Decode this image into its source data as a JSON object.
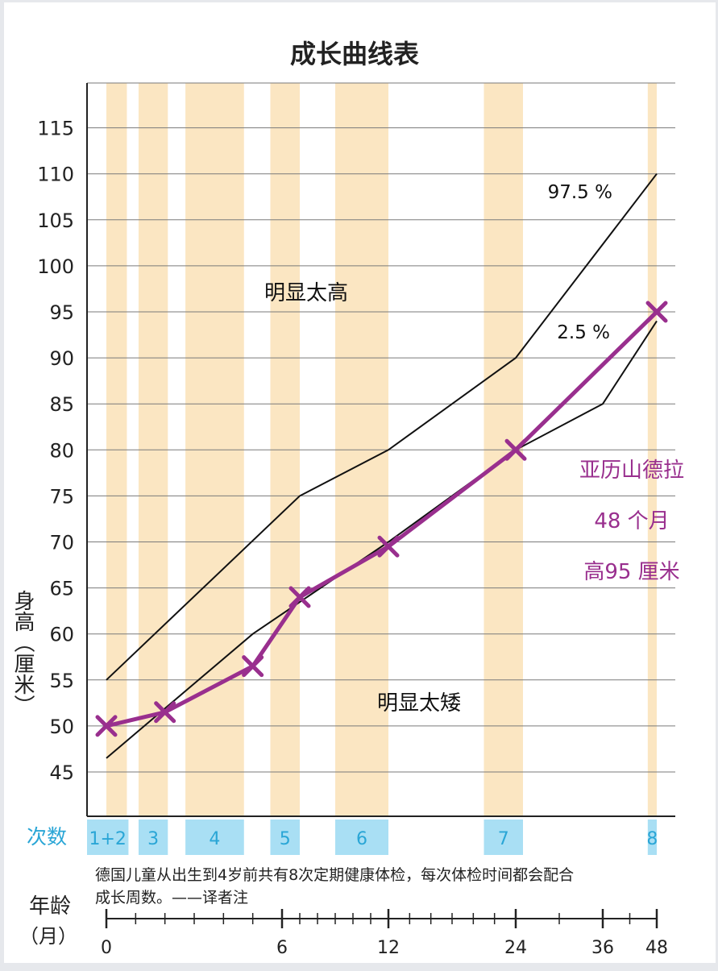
{
  "chart_data": {
    "type": "line",
    "title": "成长曲线表",
    "ylabel": "身高（厘米）",
    "xlabel": "年龄（月）",
    "ylim": [
      40,
      120
    ],
    "yticks": [
      45,
      50,
      55,
      60,
      65,
      70,
      75,
      80,
      85,
      90,
      95,
      100,
      105,
      110,
      115
    ],
    "xticks": [
      {
        "label": "0",
        "month": 0
      },
      {
        "label": "6",
        "month": 6
      },
      {
        "label": "12",
        "month": 12
      },
      {
        "label": "24",
        "month": 24
      },
      {
        "label": "36",
        "month": 36
      },
      {
        "label": "48",
        "month": 48
      }
    ],
    "grid": true,
    "reference_curves": [
      {
        "name": "97.5 %",
        "points": [
          [
            0,
            55
          ],
          [
            7,
            75
          ],
          [
            12,
            80
          ],
          [
            24,
            90
          ],
          [
            48,
            110
          ]
        ]
      },
      {
        "name": "2.5 %",
        "points": [
          [
            0,
            46.5
          ],
          [
            5,
            60
          ],
          [
            12,
            70
          ],
          [
            24,
            80
          ],
          [
            36,
            85
          ],
          [
            48,
            94
          ]
        ]
      }
    ],
    "series": [
      {
        "name": "亚历山德拉",
        "color": "#992f8e",
        "points": [
          [
            0,
            50
          ],
          [
            2,
            51.5
          ],
          [
            5,
            56.5
          ],
          [
            7,
            64
          ],
          [
            12,
            69.5
          ],
          [
            24,
            80
          ],
          [
            48,
            95
          ]
        ]
      }
    ],
    "region_labels": {
      "above": "明显太高",
      "below": "明显太矮"
    },
    "annotation_lines": [
      "亚历山德拉",
      "48 个月",
      "高95 厘米"
    ],
    "checkups": {
      "label": "次数",
      "items": [
        {
          "label": "1+2",
          "from": 0,
          "to": 0.7
        },
        {
          "label": "3",
          "from": 1.1,
          "to": 2.1
        },
        {
          "label": "4",
          "from": 2.7,
          "to": 4.7
        },
        {
          "label": "5",
          "from": 5.6,
          "to": 7.0
        },
        {
          "label": "6",
          "from": 9.0,
          "to": 12.0
        },
        {
          "label": "7",
          "from": 21.0,
          "to": 25.0
        },
        {
          "label": "8",
          "from": 46.0,
          "to": 48.0
        }
      ]
    },
    "note": [
      "德国儿童从出生到4岁前共有8次定期健康体检，每次体检时间都会配合",
      "成长周数。——译者注"
    ],
    "age_axis_label": [
      "年龄",
      "（月）"
    ]
  }
}
